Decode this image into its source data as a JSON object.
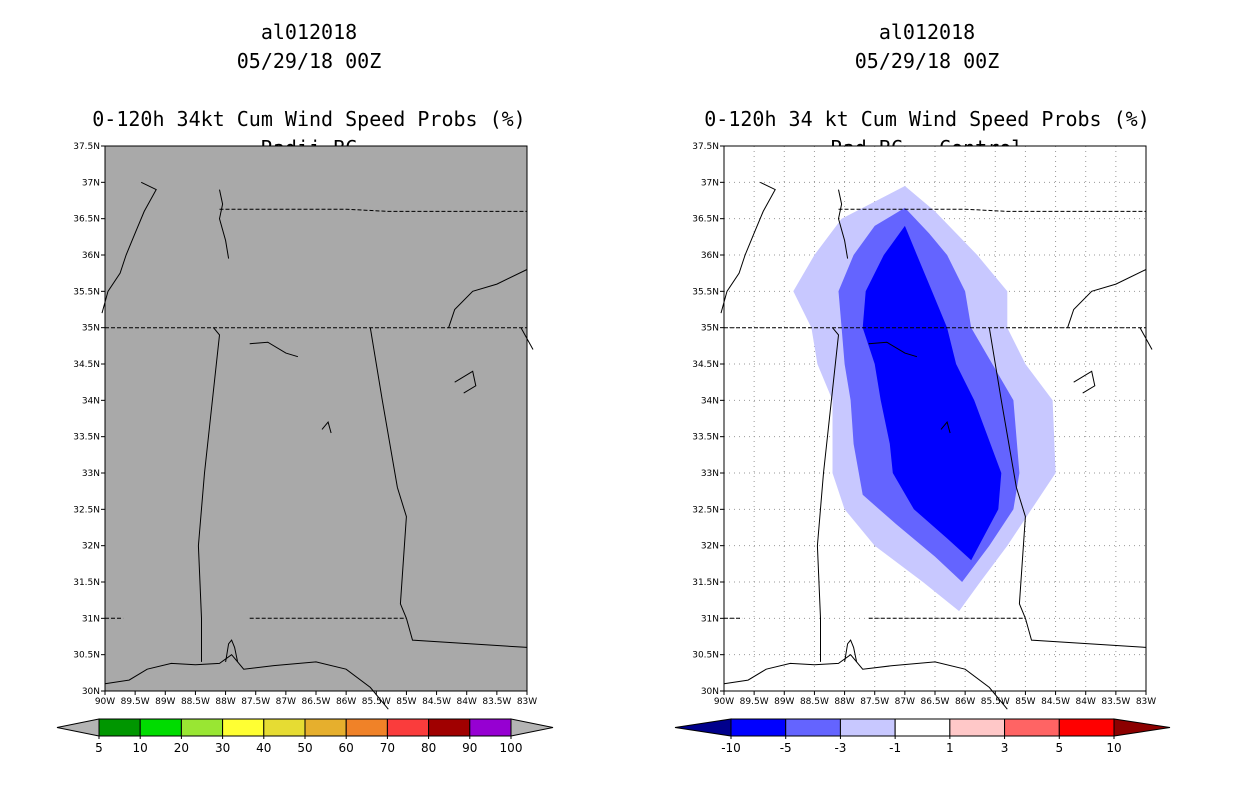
{
  "left_panel": {
    "storm_id": "al012018",
    "datetime": "05/29/18 00Z",
    "product": "0-120h 34kt Cum Wind Speed Probs (%)",
    "subtitle": "Radii BC",
    "background_color": "#a9a9a9",
    "colorbar": {
      "labels": [
        "5",
        "10",
        "20",
        "30",
        "40",
        "50",
        "60",
        "70",
        "80",
        "90",
        "100"
      ],
      "colors": [
        "#009600",
        "#00dc00",
        "#99e633",
        "#ffff33",
        "#e6dc33",
        "#e6af2d",
        "#f08228",
        "#fa3c3c",
        "#a00000",
        "#9600d2"
      ],
      "end_color": "#b4b4b4"
    }
  },
  "right_panel": {
    "storm_id": "al012018",
    "datetime": "05/29/18 00Z",
    "product": "0-120h 34 kt Cum Wind Speed Probs (%)",
    "subtitle": "Rad BC - Control",
    "colorbar": {
      "labels": [
        "-10",
        "-5",
        "-3",
        "-1",
        "1",
        "3",
        "5",
        "10"
      ],
      "colors": [
        "#0000ff",
        "#6464ff",
        "#c8c8ff",
        "#ffffff",
        "#ffc8c8",
        "#ff6464",
        "#ff0000"
      ],
      "low_end_color": "#00008c",
      "high_end_color": "#8c0000"
    }
  },
  "map": {
    "lat_labels": [
      "37.5N",
      "37N",
      "36.5N",
      "36N",
      "35.5N",
      "35N",
      "34.5N",
      "34N",
      "33.5N",
      "33N",
      "32.5N",
      "32N",
      "31.5N",
      "31N",
      "30.5N",
      "30N"
    ],
    "lon_labels": [
      "90W",
      "89.5W",
      "89W",
      "88.5W",
      "88W",
      "87.5W",
      "87W",
      "86.5W",
      "86W",
      "85.5W",
      "85W",
      "84.5W",
      "84W",
      "83.5W",
      "83W"
    ]
  },
  "diff_field": {
    "levels": [
      "-1",
      "-3",
      "-5"
    ],
    "colors": [
      "#c8c8ff",
      "#6464ff",
      "#0000ff"
    ]
  }
}
